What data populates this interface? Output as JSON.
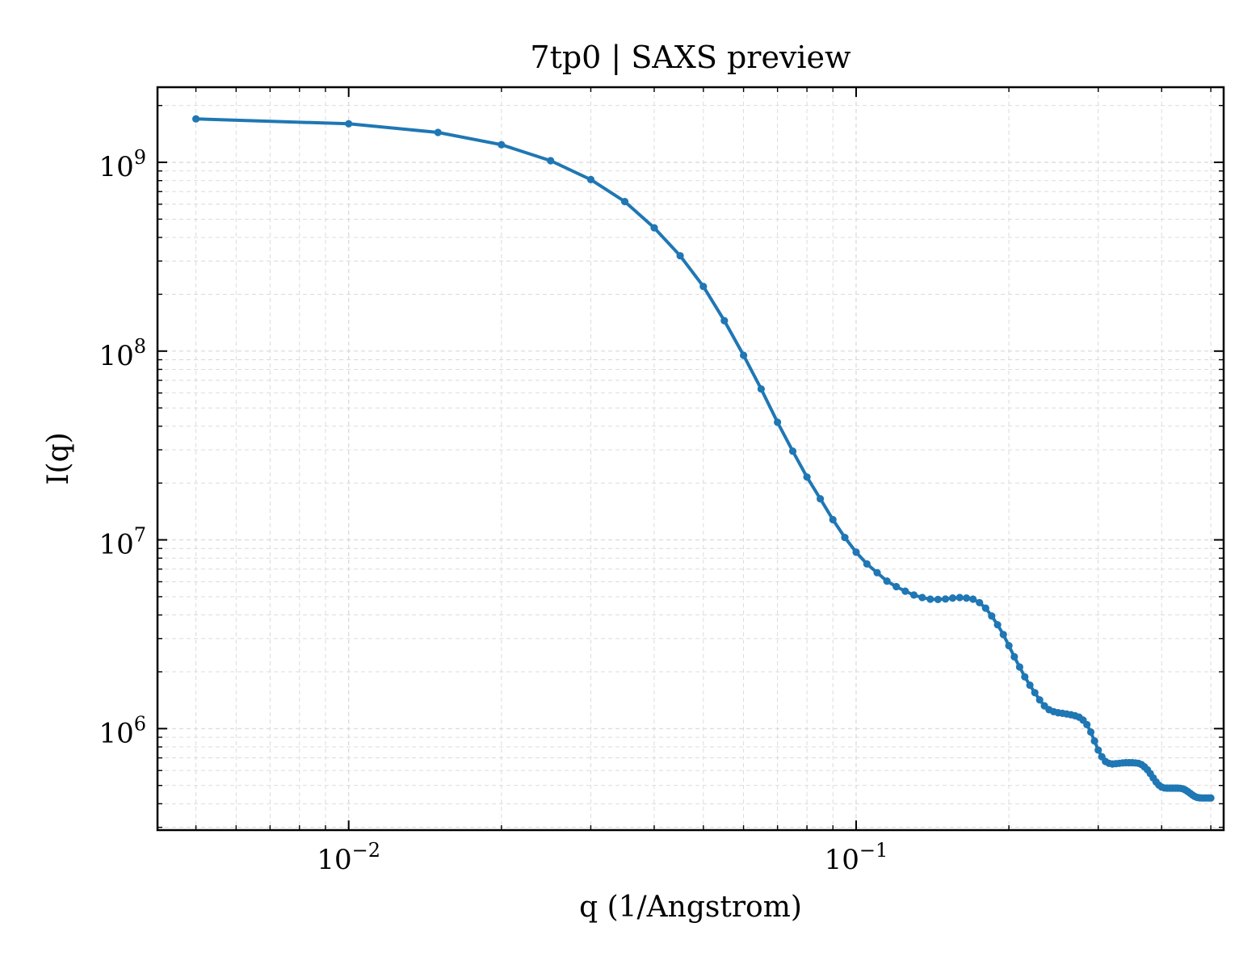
{
  "chart_data": {
    "type": "line",
    "title": "7tp0 | SAXS preview",
    "xlabel": "q (1/Angstrom)",
    "ylabel": "I(q)",
    "xscale": "log",
    "yscale": "log",
    "xlim": [
      0.0042,
      0.53
    ],
    "ylim": [
      290000,
      2500000000
    ],
    "grid": true,
    "legend": "none",
    "colors": {
      "line": "#1f77b4",
      "grid": "#d8d8d8",
      "axes": "#000000"
    },
    "x_ticks": [
      {
        "value": 0.01,
        "base": "10",
        "exp": "−2"
      },
      {
        "value": 0.1,
        "base": "10",
        "exp": "−1"
      }
    ],
    "y_ticks": [
      {
        "value": 1000000,
        "base": "10",
        "exp": "6"
      },
      {
        "value": 10000000,
        "base": "10",
        "exp": "7"
      },
      {
        "value": 100000000,
        "base": "10",
        "exp": "8"
      },
      {
        "value": 1000000000,
        "base": "10",
        "exp": "9"
      }
    ],
    "series": [
      {
        "x": [
          0.005,
          0.01,
          0.015,
          0.02,
          0.025,
          0.03,
          0.035,
          0.04,
          0.045,
          0.05,
          0.055,
          0.06,
          0.065,
          0.07,
          0.075,
          0.08,
          0.085,
          0.09,
          0.095,
          0.1,
          0.105,
          0.11,
          0.115,
          0.12,
          0.125,
          0.13,
          0.135,
          0.14,
          0.145,
          0.15,
          0.155,
          0.16,
          0.165,
          0.17,
          0.175,
          0.18,
          0.185,
          0.19,
          0.195,
          0.2,
          0.205,
          0.21,
          0.215,
          0.22,
          0.225,
          0.23,
          0.235,
          0.24,
          0.245,
          0.25,
          0.255,
          0.26,
          0.265,
          0.27,
          0.275,
          0.28,
          0.285,
          0.29,
          0.295,
          0.3,
          0.305,
          0.31,
          0.315,
          0.32,
          0.325,
          0.33,
          0.335,
          0.34,
          0.345,
          0.35,
          0.355,
          0.36,
          0.365,
          0.37,
          0.375,
          0.38,
          0.385,
          0.39,
          0.395,
          0.4,
          0.405,
          0.41,
          0.415,
          0.42,
          0.425,
          0.43,
          0.435,
          0.44,
          0.445,
          0.45,
          0.455,
          0.46,
          0.465,
          0.47,
          0.475,
          0.48,
          0.485,
          0.49,
          0.495,
          0.5
        ],
        "y": [
          1700000000,
          1600000000,
          1440000000,
          1240000000,
          1020000000,
          810000000,
          620000000,
          450000000,
          320000000,
          220000000,
          145000000,
          95000000,
          63000000,
          42000000,
          29500000,
          21500000,
          16500000,
          12800000,
          10300000,
          8600000,
          7450000,
          6700000,
          6050000,
          5650000,
          5350000,
          5100000,
          4950000,
          4850000,
          4830000,
          4860000,
          4920000,
          4950000,
          4920000,
          4850000,
          4650000,
          4350000,
          3950000,
          3550000,
          3150000,
          2750000,
          2400000,
          2120000,
          1880000,
          1700000,
          1550000,
          1420000,
          1320000,
          1260000,
          1230000,
          1215000,
          1205000,
          1195000,
          1185000,
          1170000,
          1150000,
          1110000,
          1050000,
          960000,
          860000,
          770000,
          710000,
          670000,
          655000,
          650000,
          652000,
          655000,
          658000,
          660000,
          660000,
          660000,
          658000,
          655000,
          645000,
          628000,
          605000,
          578000,
          548000,
          522000,
          502000,
          490000,
          485000,
          484000,
          484000,
          484000,
          484000,
          484000,
          483000,
          480000,
          474000,
          465000,
          455000,
          445000,
          437000,
          432000,
          430000,
          429000,
          429000,
          429000,
          429000,
          429000
        ]
      }
    ]
  }
}
